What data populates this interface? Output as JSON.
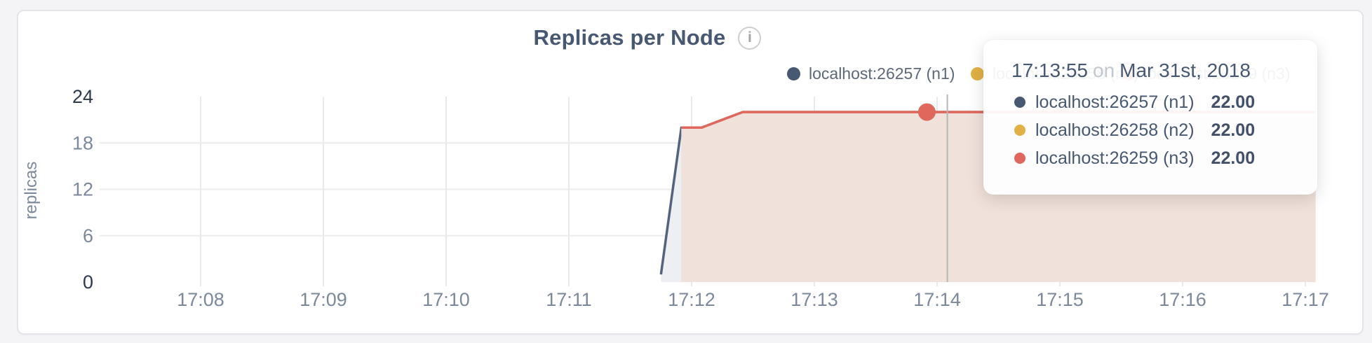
{
  "header": {
    "title": "Replicas per Node",
    "info_glyph": "i"
  },
  "legend": {
    "items": [
      {
        "label": "localhost:26257 (n1)",
        "color": "#475872"
      },
      {
        "label": "localhost:26258 (n2)",
        "color": "#e2b146"
      },
      {
        "label": "localhost:26259 (n3)",
        "color": "#e0675c"
      }
    ]
  },
  "tooltip": {
    "time": "17:13:55",
    "connector": "on",
    "date": "Mar 31st, 2018",
    "rows": [
      {
        "label": "localhost:26257 (n1)",
        "value": "22.00",
        "color": "#475872"
      },
      {
        "label": "localhost:26258 (n2)",
        "value": "22.00",
        "color": "#e2b146"
      },
      {
        "label": "localhost:26259 (n3)",
        "value": "22.00",
        "color": "#e0675c"
      }
    ]
  },
  "chart_data": {
    "type": "area",
    "title": "Replicas per Node",
    "ylabel": "replicas",
    "ylim": [
      0,
      24
    ],
    "yticks": [
      0,
      6,
      12,
      18,
      24
    ],
    "x_ticks": [
      "17:08",
      "17:09",
      "17:10",
      "17:11",
      "17:12",
      "17:13",
      "17:14",
      "17:15",
      "17:16",
      "17:17"
    ],
    "x_range": [
      "17:08:00",
      "17:17:05"
    ],
    "grid": true,
    "legend_position": "top-right",
    "series": [
      {
        "name": "localhost:26257 (n1)",
        "color": "#475872",
        "line_color": "#54647f",
        "fill_color": "#edeff3",
        "points": [
          [
            "17:11:45",
            1
          ],
          [
            "17:11:55",
            20
          ],
          [
            "17:12:05",
            20
          ],
          [
            "17:12:25",
            22
          ],
          [
            "17:17:05",
            22
          ]
        ]
      },
      {
        "name": "localhost:26258 (n2)",
        "color": "#e2b146",
        "line_color": "#e2b146",
        "fill_color": "#f4e9d7",
        "points": [
          [
            "17:11:55",
            20
          ],
          [
            "17:12:05",
            20
          ],
          [
            "17:12:25",
            22
          ],
          [
            "17:17:05",
            22
          ]
        ]
      },
      {
        "name": "localhost:26259 (n3)",
        "color": "#e0675c",
        "line_color": "#e0675c",
        "fill_color": "#f0e1da",
        "points": [
          [
            "17:11:55",
            20
          ],
          [
            "17:12:05",
            20
          ],
          [
            "17:12:25",
            22
          ],
          [
            "17:17:05",
            22
          ]
        ]
      }
    ],
    "hover": {
      "crosshair_time": "17:14:05",
      "point_time": "17:13:55",
      "point_series": 2,
      "point_value": 22
    },
    "colors": {
      "grid_vertical": "#e9e9eb",
      "grid_horizontal": "#ececee",
      "tick_gray": "#7c889b",
      "tick_dark": "#2d3a50",
      "crosshair": "#b6b6b8"
    }
  }
}
